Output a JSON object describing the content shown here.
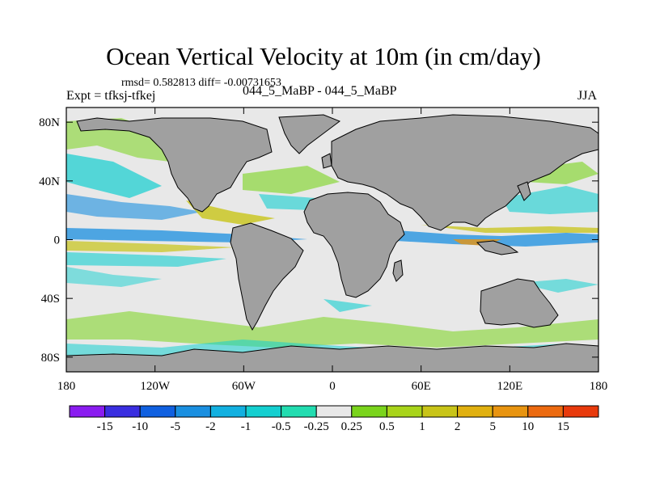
{
  "title": "Ocean Vertical Velocity at 10m (in cm/day)",
  "stats": "rmsd= 0.582813 diff= -0.00731653",
  "expt": "Expt = tfksj-tfkej",
  "subtitle": "044_5_MaBP - 044_5_MaBP",
  "season": "JJA",
  "y_ticks": [
    {
      "label": "80N",
      "lat": 80
    },
    {
      "label": "40N",
      "lat": 40
    },
    {
      "label": "0",
      "lat": 0
    },
    {
      "label": "40S",
      "lat": -40
    },
    {
      "label": "80S",
      "lat": -80
    }
  ],
  "x_ticks": [
    {
      "label": "180",
      "lon": -180
    },
    {
      "label": "120W",
      "lon": -120
    },
    {
      "label": "60W",
      "lon": -60
    },
    {
      "label": "0",
      "lon": 0
    },
    {
      "label": "60E",
      "lon": 60
    },
    {
      "label": "120E",
      "lon": 120
    },
    {
      "label": "180",
      "lon": 180
    }
  ],
  "colorbar": {
    "colors": [
      "#8a1cf0",
      "#3a2ee0",
      "#1060e0",
      "#1a8fe0",
      "#12b0e0",
      "#14cfd0",
      "#22dcb0",
      "#e8e8e8",
      "#7ad41c",
      "#a8d41a",
      "#c8c418",
      "#e0b010",
      "#e89410",
      "#ec6a10",
      "#e83a0c"
    ],
    "labels": [
      "-15",
      "-10",
      "-5",
      "-2",
      "-1",
      "-0.5",
      "-0.25",
      "0.25",
      "0.5",
      "1",
      "2",
      "5",
      "10",
      "15"
    ]
  },
  "map_colors": {
    "land": "#a0a0a0",
    "ocean": "#e8e8e8",
    "outline": "#000000"
  }
}
